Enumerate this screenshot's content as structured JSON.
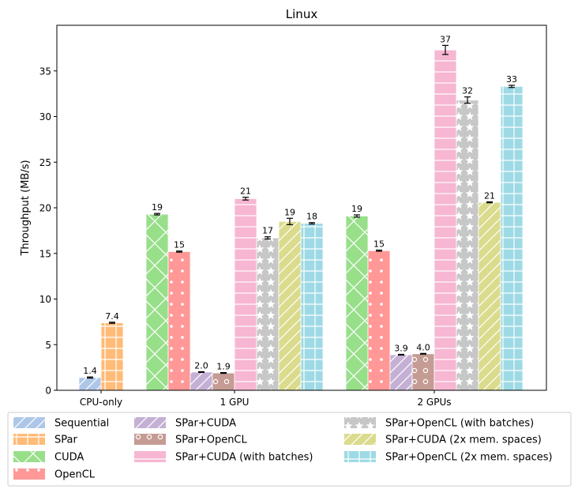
{
  "chart_data": {
    "type": "bar",
    "title": "Linux",
    "xlabel": "",
    "ylabel": "Throughput (MB/s)",
    "ylim": [
      0,
      40
    ],
    "yticks": [
      0,
      5,
      10,
      15,
      20,
      25,
      30,
      35
    ],
    "categories": [
      "CPU-only",
      "1 GPU",
      "2 GPUs"
    ],
    "legend_position": "bottom, outside plot, 3 columns",
    "series": [
      {
        "name": "Sequential",
        "color": "#aec7e8",
        "pattern": "diagonal-lines",
        "values": [
          1.4,
          null,
          null
        ],
        "errors": [
          0.06,
          null,
          null
        ],
        "labels": [
          "1.4",
          null,
          null
        ]
      },
      {
        "name": "SPar",
        "color": "#ffbb78",
        "pattern": "grid-plus",
        "values": [
          7.4,
          null,
          null
        ],
        "errors": [
          0.06,
          null,
          null
        ],
        "labels": [
          "7.4",
          null,
          null
        ]
      },
      {
        "name": "CUDA",
        "color": "#98df8a",
        "pattern": "cross-hatch",
        "values": [
          null,
          19.3,
          19.1
        ],
        "errors": [
          null,
          0.08,
          0.12
        ],
        "labels": [
          null,
          "19",
          "19"
        ]
      },
      {
        "name": "OpenCL",
        "color": "#ff9896",
        "pattern": "dots",
        "values": [
          null,
          15.2,
          15.3
        ],
        "errors": [
          null,
          0.06,
          0.06
        ],
        "labels": [
          null,
          "15",
          "15"
        ]
      },
      {
        "name": "SPar+CUDA",
        "color": "#c5b0d5",
        "pattern": "diagonal-lines",
        "values": [
          null,
          2.0,
          3.9
        ],
        "errors": [
          null,
          0.04,
          0.04
        ],
        "labels": [
          null,
          "2.0",
          "3.9"
        ]
      },
      {
        "name": "SPar+OpenCL",
        "color": "#c49c94",
        "pattern": "circles",
        "values": [
          null,
          1.9,
          4.0
        ],
        "errors": [
          null,
          0.04,
          0.04
        ],
        "labels": [
          null,
          "1.9",
          "4.0"
        ]
      },
      {
        "name": "SPar+CUDA (with batches)",
        "color": "#f7b6d2",
        "pattern": "horizontal-lines",
        "values": [
          null,
          21.0,
          37.3
        ],
        "errors": [
          null,
          0.15,
          0.5
        ],
        "labels": [
          null,
          "21",
          "37"
        ]
      },
      {
        "name": "SPar+OpenCL (with batches)",
        "color": "#c7c7c7",
        "pattern": "stars",
        "values": [
          null,
          16.7,
          31.8
        ],
        "errors": [
          null,
          0.12,
          0.35
        ],
        "labels": [
          null,
          "17",
          "32"
        ]
      },
      {
        "name": "SPar+CUDA (2x mem. spaces)",
        "color": "#dbdb8d",
        "pattern": "diagonal-lines",
        "values": [
          null,
          18.5,
          20.6
        ],
        "errors": [
          null,
          0.35,
          0.05
        ],
        "labels": [
          null,
          "19",
          "21"
        ]
      },
      {
        "name": "SPar+OpenCL (2x mem. spaces)",
        "color": "#9edae5",
        "pattern": "grid-plus",
        "values": [
          null,
          18.3,
          33.3
        ],
        "errors": [
          null,
          0.08,
          0.12
        ],
        "labels": [
          null,
          "18",
          "33"
        ]
      }
    ]
  }
}
